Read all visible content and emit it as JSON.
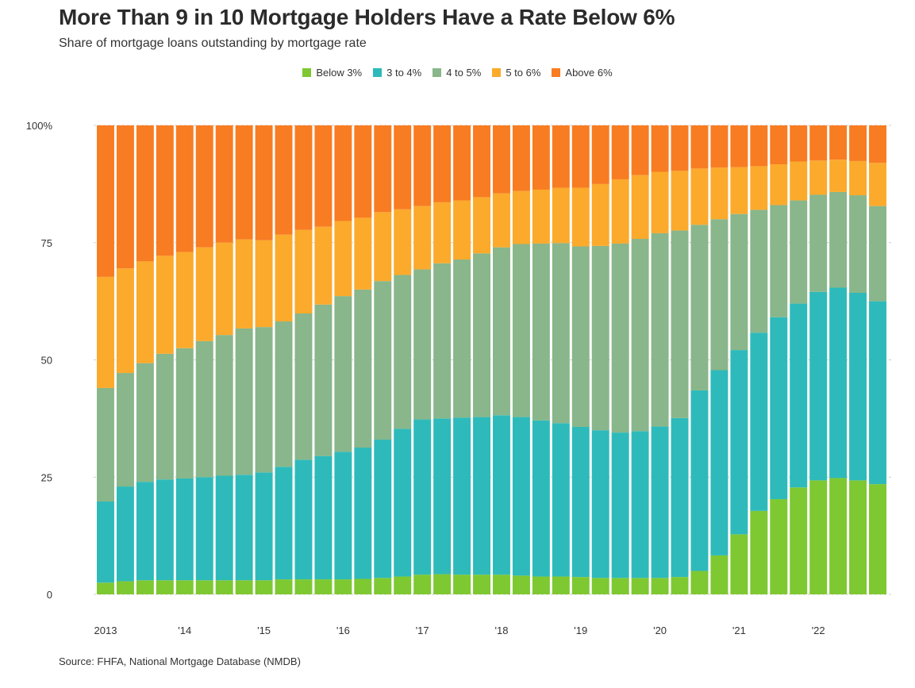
{
  "title": "More Than 9 in 10 Mortgage Holders Have a Rate Below 6%",
  "subtitle": "Share of mortgage loans outstanding by mortgage rate",
  "source": "Source: FHFA, National Mortgage Database (NMDB)",
  "colors": {
    "Below 3%": "#7ec832",
    "3 to 4%": "#2ebaba",
    "4 to 5%": "#89b68a",
    "5 to 6%": "#fbaa2c",
    "Above 6%": "#f87c22"
  },
  "legend": [
    {
      "label": "Below 3%",
      "color": "#7ec832"
    },
    {
      "label": "3 to 4%",
      "color": "#2ebaba"
    },
    {
      "label": "4 to 5%",
      "color": "#89b68a"
    },
    {
      "label": "5 to 6%",
      "color": "#fbaa2c"
    },
    {
      "label": "Above 6%",
      "color": "#f87c22"
    }
  ],
  "chart_data": {
    "type": "bar",
    "stacked": true,
    "title": "More Than 9 in 10 Mortgage Holders Have a Rate Below 6%",
    "subtitle": "Share of mortgage loans outstanding by mortgage rate",
    "xlabel": "",
    "ylabel": "",
    "ylim": [
      0,
      100
    ],
    "yticks": [
      0,
      25,
      50,
      75,
      100
    ],
    "ytick_labels": [
      "0",
      "25",
      "50",
      "75",
      "100%"
    ],
    "xtick_labels": [
      {
        "index": 0,
        "label": "2013"
      },
      {
        "index": 4,
        "label": "'14"
      },
      {
        "index": 8,
        "label": "'15"
      },
      {
        "index": 12,
        "label": "'16"
      },
      {
        "index": 16,
        "label": "'17"
      },
      {
        "index": 20,
        "label": "'18"
      },
      {
        "index": 24,
        "label": "'19"
      },
      {
        "index": 28,
        "label": "'20"
      },
      {
        "index": 32,
        "label": "'21"
      },
      {
        "index": 36,
        "label": "'22"
      }
    ],
    "legend_position": "top-center",
    "grid": "horizontal dashed",
    "categories": [
      "2013 Q1",
      "2013 Q2",
      "2013 Q3",
      "2013 Q4",
      "2014 Q1",
      "2014 Q2",
      "2014 Q3",
      "2014 Q4",
      "2015 Q1",
      "2015 Q2",
      "2015 Q3",
      "2015 Q4",
      "2016 Q1",
      "2016 Q2",
      "2016 Q3",
      "2016 Q4",
      "2017 Q1",
      "2017 Q2",
      "2017 Q3",
      "2017 Q4",
      "2018 Q1",
      "2018 Q2",
      "2018 Q3",
      "2018 Q4",
      "2019 Q1",
      "2019 Q2",
      "2019 Q3",
      "2019 Q4",
      "2020 Q1",
      "2020 Q2",
      "2020 Q3",
      "2020 Q4",
      "2021 Q1",
      "2021 Q2",
      "2021 Q3",
      "2021 Q4",
      "2022 Q1",
      "2022 Q2",
      "2022 Q3",
      "2022 Q4"
    ],
    "series": [
      {
        "name": "Below 3%",
        "values": [
          2.5,
          2.8,
          3.0,
          3.0,
          3.0,
          3.0,
          3.0,
          3.0,
          3.0,
          3.2,
          3.2,
          3.2,
          3.2,
          3.3,
          3.5,
          3.8,
          4.2,
          4.3,
          4.2,
          4.2,
          4.2,
          4.0,
          3.8,
          3.8,
          3.7,
          3.5,
          3.5,
          3.5,
          3.5,
          3.7,
          5.0,
          8.3,
          12.8,
          17.8,
          20.3,
          22.8,
          24.3,
          24.8,
          24.3,
          23.5
        ]
      },
      {
        "name": "3 to 4%",
        "values": [
          17.3,
          20.2,
          21.0,
          21.5,
          21.7,
          22.0,
          22.3,
          22.5,
          23.0,
          24.0,
          25.5,
          26.3,
          27.2,
          28.0,
          29.5,
          31.5,
          33.1,
          33.2,
          33.5,
          33.6,
          34.0,
          33.8,
          33.3,
          32.7,
          32.0,
          31.5,
          31.0,
          31.3,
          32.3,
          33.9,
          38.5,
          39.5,
          39.3,
          38.0,
          38.8,
          39.2,
          40.2,
          40.6,
          40.0,
          39.0
        ]
      },
      {
        "name": "4 to 5%",
        "values": [
          24.2,
          24.2,
          25.3,
          26.8,
          27.8,
          29.0,
          30.0,
          31.2,
          31.0,
          31.0,
          31.2,
          32.3,
          33.2,
          33.7,
          33.8,
          32.8,
          32.0,
          33.1,
          33.7,
          34.9,
          35.8,
          36.9,
          37.7,
          38.4,
          38.5,
          39.3,
          40.3,
          41.0,
          41.2,
          40.0,
          35.3,
          32.2,
          29.0,
          26.2,
          23.9,
          22.0,
          20.7,
          20.4,
          20.8,
          20.3
        ]
      },
      {
        "name": "5 to 6%",
        "values": [
          23.7,
          22.3,
          21.7,
          20.9,
          20.5,
          20.0,
          19.7,
          19.0,
          18.5,
          18.5,
          17.8,
          16.6,
          16.0,
          15.3,
          14.7,
          14.0,
          13.5,
          13.0,
          12.6,
          12.0,
          11.5,
          11.3,
          11.5,
          11.8,
          12.5,
          13.2,
          13.7,
          13.6,
          13.1,
          12.7,
          12.0,
          11.0,
          10.0,
          9.3,
          8.7,
          8.3,
          7.3,
          6.9,
          7.3,
          9.2
        ]
      },
      {
        "name": "Above 6%",
        "values": [
          32.3,
          30.5,
          29.0,
          27.8,
          27.0,
          26.0,
          25.0,
          24.3,
          24.5,
          23.3,
          22.3,
          21.6,
          20.4,
          19.7,
          18.5,
          17.9,
          17.2,
          16.4,
          16.0,
          15.3,
          14.5,
          14.0,
          13.7,
          13.3,
          13.3,
          12.5,
          11.5,
          10.6,
          9.9,
          9.7,
          9.2,
          9.0,
          8.9,
          8.7,
          8.3,
          7.7,
          7.5,
          7.3,
          7.6,
          8.0
        ]
      }
    ]
  }
}
